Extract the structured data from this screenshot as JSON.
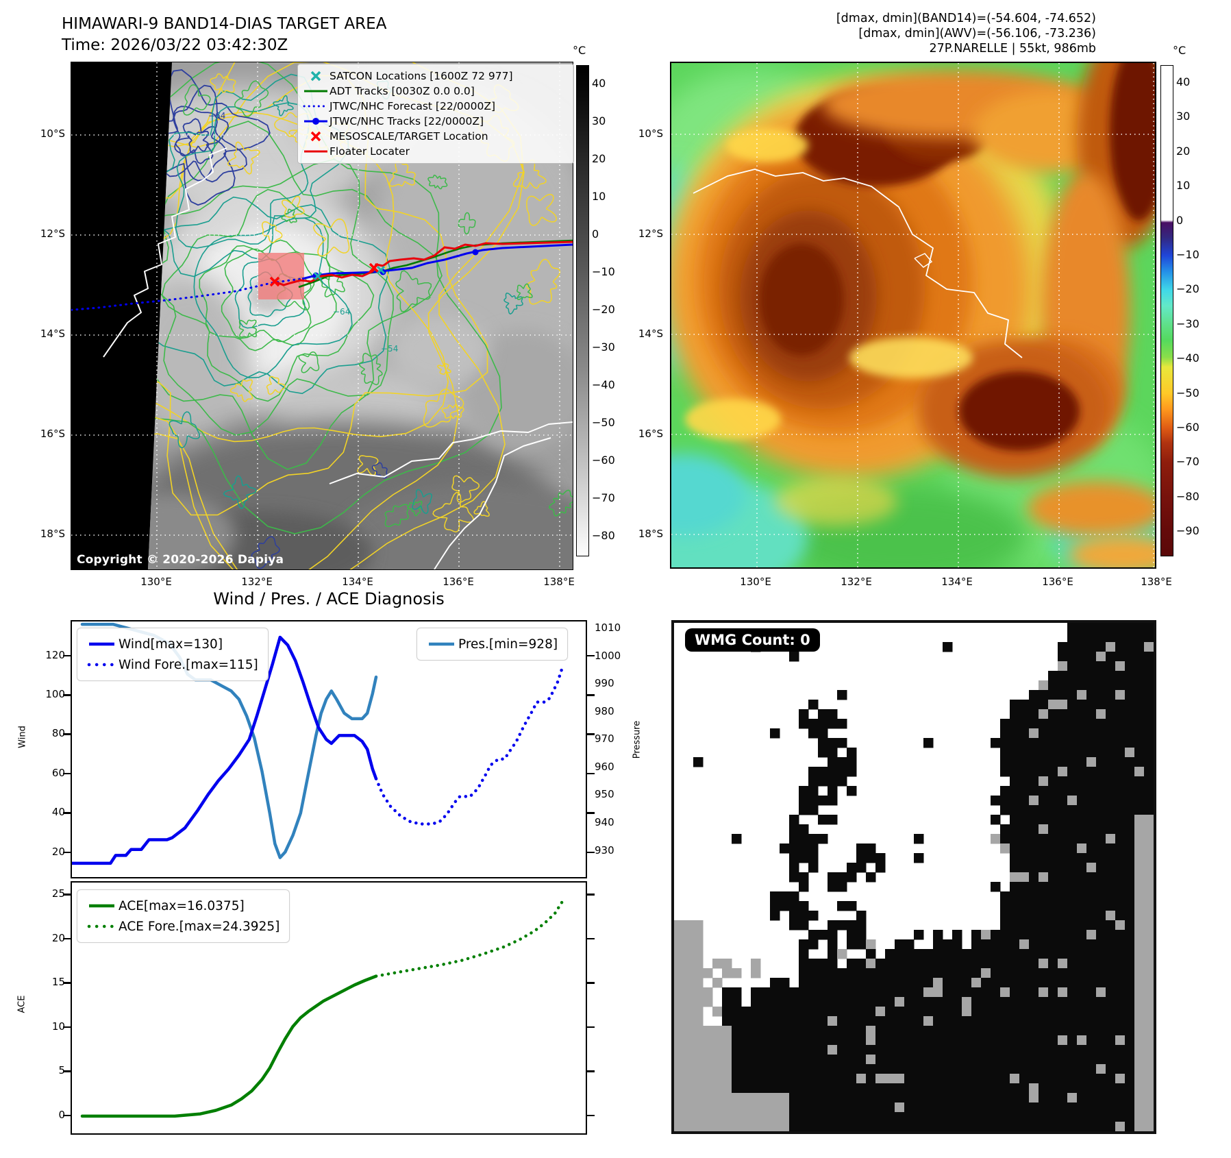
{
  "left_map": {
    "title": "HIMAWARI-9 BAND14-DIAS TARGET AREA",
    "subtitle": "Time: 2026/03/22 03:42:30Z",
    "copyright": "Copyright © 2020-2026 Dapiya",
    "lat_ticks": [
      "10°S",
      "12°S",
      "14°S",
      "16°S",
      "18°S"
    ],
    "lon_ticks": [
      "130°E",
      "132°E",
      "134°E",
      "136°E",
      "138°E"
    ],
    "colorbar_unit": "°C",
    "colorbar_ticks": [
      "40",
      "30",
      "20",
      "10",
      "0",
      "−10",
      "−20",
      "−30",
      "−40",
      "−50",
      "−60",
      "−70",
      "−80"
    ],
    "contour_labels": [
      "−64",
      "−64",
      "−54"
    ],
    "legend": [
      {
        "label": "SATCON Locations [1600Z 72 977]",
        "marker": "x",
        "color": "#20b2aa"
      },
      {
        "label": "ADT Tracks [0030Z 0.0 0.0]",
        "marker": "line",
        "color": "#007a00"
      },
      {
        "label": "JTWC/NHC Forecast [22/0000Z]",
        "marker": "dotted",
        "color": "#0000ee"
      },
      {
        "label": "JTWC/NHC Tracks [22/0000Z]",
        "marker": "line-circle",
        "color": "#0000ee"
      },
      {
        "label": "MESOSCALE/TARGET Location",
        "marker": "x",
        "color": "#ff0000"
      },
      {
        "label": "Floater Locater",
        "marker": "line",
        "color": "#e8000b"
      }
    ]
  },
  "right_map": {
    "info_lines": [
      "[dmax, dmin](BAND14)=(-54.604, -74.652)",
      "[dmax, dmin](AWV)=(-56.106, -73.236)",
      "27P.NARELLE | 55kt, 986mb"
    ],
    "lat_ticks": [
      "10°S",
      "12°S",
      "14°S",
      "16°S",
      "18°S"
    ],
    "lon_ticks": [
      "130°E",
      "132°E",
      "134°E",
      "136°E",
      "138°E"
    ],
    "colorbar_unit": "°C",
    "colorbar_ticks": [
      "40",
      "30",
      "20",
      "10",
      "0",
      "−10",
      "−20",
      "−30",
      "−40",
      "−50",
      "−60",
      "−70",
      "−80",
      "−90"
    ]
  },
  "wmg": {
    "badge": "WMG Count: 0"
  },
  "charts": {
    "suptitle": "Wind / Pres. / ACE Diagnosis"
  },
  "chart_data": [
    {
      "type": "line",
      "title": "Wind / Pres. / ACE Diagnosis",
      "ylabel": "Wind",
      "y2label": "Pressure",
      "yticks": [
        120,
        100,
        80,
        60,
        40,
        20
      ],
      "y2ticks": [
        1010,
        1000,
        990,
        980,
        970,
        960,
        950,
        940,
        930
      ],
      "ylim": [
        8,
        138
      ],
      "y2lim": [
        921,
        1013
      ],
      "xlim": [
        0,
        1
      ],
      "grid": false,
      "series": [
        {
          "name": "Wind[max=130]",
          "axis": "y",
          "style": "solid",
          "color": "#0000ee",
          "points": [
            [
              0.0,
              15
            ],
            [
              0.075,
              15
            ],
            [
              0.085,
              19
            ],
            [
              0.105,
              19
            ],
            [
              0.115,
              22
            ],
            [
              0.135,
              22
            ],
            [
              0.15,
              27
            ],
            [
              0.185,
              27
            ],
            [
              0.195,
              28
            ],
            [
              0.22,
              33
            ],
            [
              0.245,
              42
            ],
            [
              0.265,
              50
            ],
            [
              0.285,
              57
            ],
            [
              0.305,
              63
            ],
            [
              0.325,
              70
            ],
            [
              0.345,
              78
            ],
            [
              0.36,
              90
            ],
            [
              0.375,
              103
            ],
            [
              0.39,
              116
            ],
            [
              0.405,
              130
            ],
            [
              0.42,
              126
            ],
            [
              0.435,
              118
            ],
            [
              0.45,
              107
            ],
            [
              0.465,
              95
            ],
            [
              0.48,
              84
            ],
            [
              0.495,
              78
            ],
            [
              0.505,
              76
            ],
            [
              0.52,
              80
            ],
            [
              0.55,
              80
            ],
            [
              0.565,
              77
            ],
            [
              0.575,
              73
            ],
            [
              0.585,
              63
            ],
            [
              0.592,
              58
            ]
          ]
        },
        {
          "name": "Wind Fore.[max=115]",
          "axis": "y",
          "style": "dotted",
          "color": "#0000ee",
          "points": [
            [
              0.592,
              58
            ],
            [
              0.605,
              50
            ],
            [
              0.62,
              44
            ],
            [
              0.64,
              39
            ],
            [
              0.66,
              36
            ],
            [
              0.68,
              35
            ],
            [
              0.7,
              35
            ],
            [
              0.715,
              36
            ],
            [
              0.73,
              40
            ],
            [
              0.745,
              46
            ],
            [
              0.755,
              49
            ],
            [
              0.775,
              49
            ],
            [
              0.79,
              53
            ],
            [
              0.805,
              60
            ],
            [
              0.815,
              65
            ],
            [
              0.83,
              68
            ],
            [
              0.842,
              68
            ],
            [
              0.852,
              72
            ],
            [
              0.865,
              77
            ],
            [
              0.88,
              85
            ],
            [
              0.895,
              92
            ],
            [
              0.905,
              97
            ],
            [
              0.92,
              97
            ],
            [
              0.93,
              99
            ],
            [
              0.945,
              107
            ],
            [
              0.955,
              115
            ]
          ]
        },
        {
          "name": "Pres.[min=928]",
          "axis": "y2",
          "style": "solid",
          "color": "#3182bd",
          "points": [
            [
              0.02,
              1012
            ],
            [
              0.08,
              1012
            ],
            [
              0.12,
              1010
            ],
            [
              0.16,
              1008
            ],
            [
              0.19,
              1005
            ],
            [
              0.21,
              1000
            ],
            [
              0.225,
              994
            ],
            [
              0.24,
              992
            ],
            [
              0.27,
              992
            ],
            [
              0.29,
              990
            ],
            [
              0.31,
              988
            ],
            [
              0.325,
              985
            ],
            [
              0.34,
              979
            ],
            [
              0.355,
              971
            ],
            [
              0.37,
              959
            ],
            [
              0.385,
              944
            ],
            [
              0.395,
              933
            ],
            [
              0.405,
              928
            ],
            [
              0.415,
              930
            ],
            [
              0.43,
              936
            ],
            [
              0.445,
              944
            ],
            [
              0.46,
              958
            ],
            [
              0.475,
              972
            ],
            [
              0.485,
              980
            ],
            [
              0.495,
              985
            ],
            [
              0.505,
              988
            ],
            [
              0.515,
              985
            ],
            [
              0.53,
              980
            ],
            [
              0.545,
              978
            ],
            [
              0.565,
              978
            ],
            [
              0.575,
              980
            ],
            [
              0.585,
              987
            ],
            [
              0.592,
              993
            ]
          ]
        }
      ]
    },
    {
      "type": "line",
      "ylabel": "ACE",
      "yticks": [
        25,
        20,
        15,
        10,
        5,
        0
      ],
      "ylim": [
        -1.9,
        26.5
      ],
      "xlim": [
        0,
        1
      ],
      "grid": false,
      "series": [
        {
          "name": "ACE[max=16.0375]",
          "style": "solid",
          "color": "#007f00",
          "points": [
            [
              0.02,
              0.05
            ],
            [
              0.2,
              0.05
            ],
            [
              0.25,
              0.3
            ],
            [
              0.28,
              0.7
            ],
            [
              0.31,
              1.3
            ],
            [
              0.33,
              2.0
            ],
            [
              0.35,
              2.9
            ],
            [
              0.37,
              4.2
            ],
            [
              0.385,
              5.5
            ],
            [
              0.4,
              7.2
            ],
            [
              0.415,
              8.8
            ],
            [
              0.43,
              10.2
            ],
            [
              0.445,
              11.2
            ],
            [
              0.46,
              11.9
            ],
            [
              0.475,
              12.5
            ],
            [
              0.49,
              13.1
            ],
            [
              0.51,
              13.7
            ],
            [
              0.53,
              14.3
            ],
            [
              0.55,
              14.9
            ],
            [
              0.57,
              15.4
            ],
            [
              0.592,
              15.9
            ]
          ]
        },
        {
          "name": "ACE Fore.[max=24.3925]",
          "style": "dotted",
          "color": "#007f00",
          "points": [
            [
              0.592,
              15.9
            ],
            [
              0.64,
              16.4
            ],
            [
              0.68,
              16.8
            ],
            [
              0.72,
              17.2
            ],
            [
              0.76,
              17.7
            ],
            [
              0.8,
              18.4
            ],
            [
              0.84,
              19.2
            ],
            [
              0.87,
              20.0
            ],
            [
              0.9,
              21.0
            ],
            [
              0.92,
              21.9
            ],
            [
              0.94,
              23.0
            ],
            [
              0.955,
              24.4
            ]
          ]
        }
      ]
    }
  ]
}
